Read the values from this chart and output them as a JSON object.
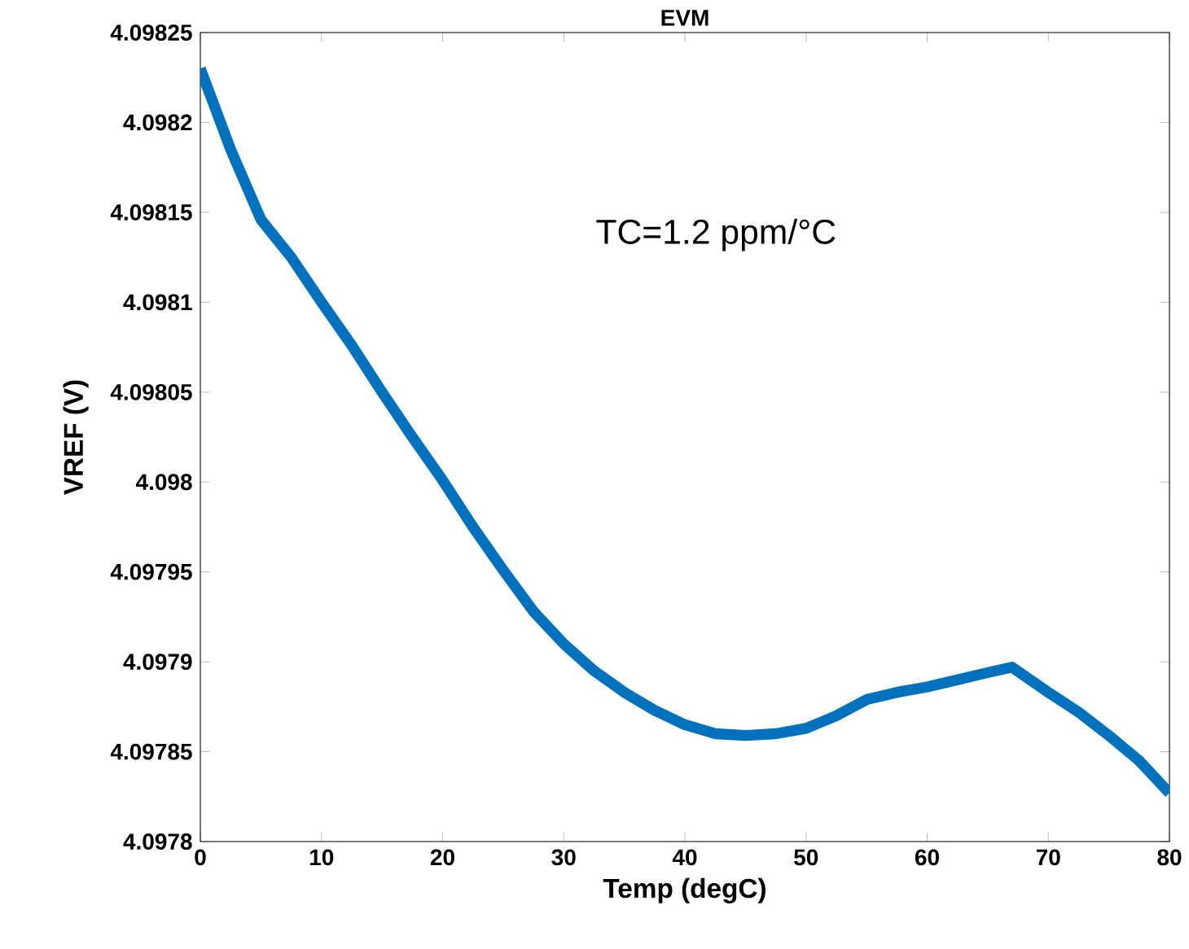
{
  "chart_data": {
    "type": "line",
    "title": "EVM",
    "xlabel": "Temp (degC)",
    "ylabel": "VREF (V)",
    "annotations": [
      "TC=1.2 ppm/°C"
    ],
    "xlim": [
      0,
      80
    ],
    "xticks": [
      0,
      10,
      20,
      30,
      40,
      50,
      60,
      70,
      80
    ],
    "ylim": [
      4.0978,
      4.09825
    ],
    "yticks": [
      4.0978,
      4.09785,
      4.0979,
      4.09795,
      4.098,
      4.09805,
      4.0981,
      4.09815,
      4.0982,
      4.09825
    ],
    "series": [
      {
        "color": "#0072bd",
        "x": [
          0,
          2.5,
          5,
          7.5,
          10,
          12.5,
          15,
          17.5,
          20,
          22.5,
          25,
          27.5,
          30,
          32.5,
          35,
          37.5,
          40,
          42.5,
          45,
          47.5,
          50,
          52.5,
          55,
          57.5,
          60,
          62.5,
          65,
          67,
          70,
          72.5,
          75,
          77.5,
          80
        ],
        "values": [
          4.09823,
          4.098185,
          4.098146,
          4.098125,
          4.0981,
          4.098076,
          4.09805,
          4.098025,
          4.098001,
          4.097975,
          4.097951,
          4.097928,
          4.09791,
          4.097895,
          4.097883,
          4.097873,
          4.097865,
          4.09786,
          4.097859,
          4.09786,
          4.097863,
          4.09787,
          4.097879,
          4.097883,
          4.097886,
          4.09789,
          4.097894,
          4.097897,
          4.097883,
          4.097872,
          4.097859,
          4.097845,
          4.097827
        ]
      }
    ]
  }
}
